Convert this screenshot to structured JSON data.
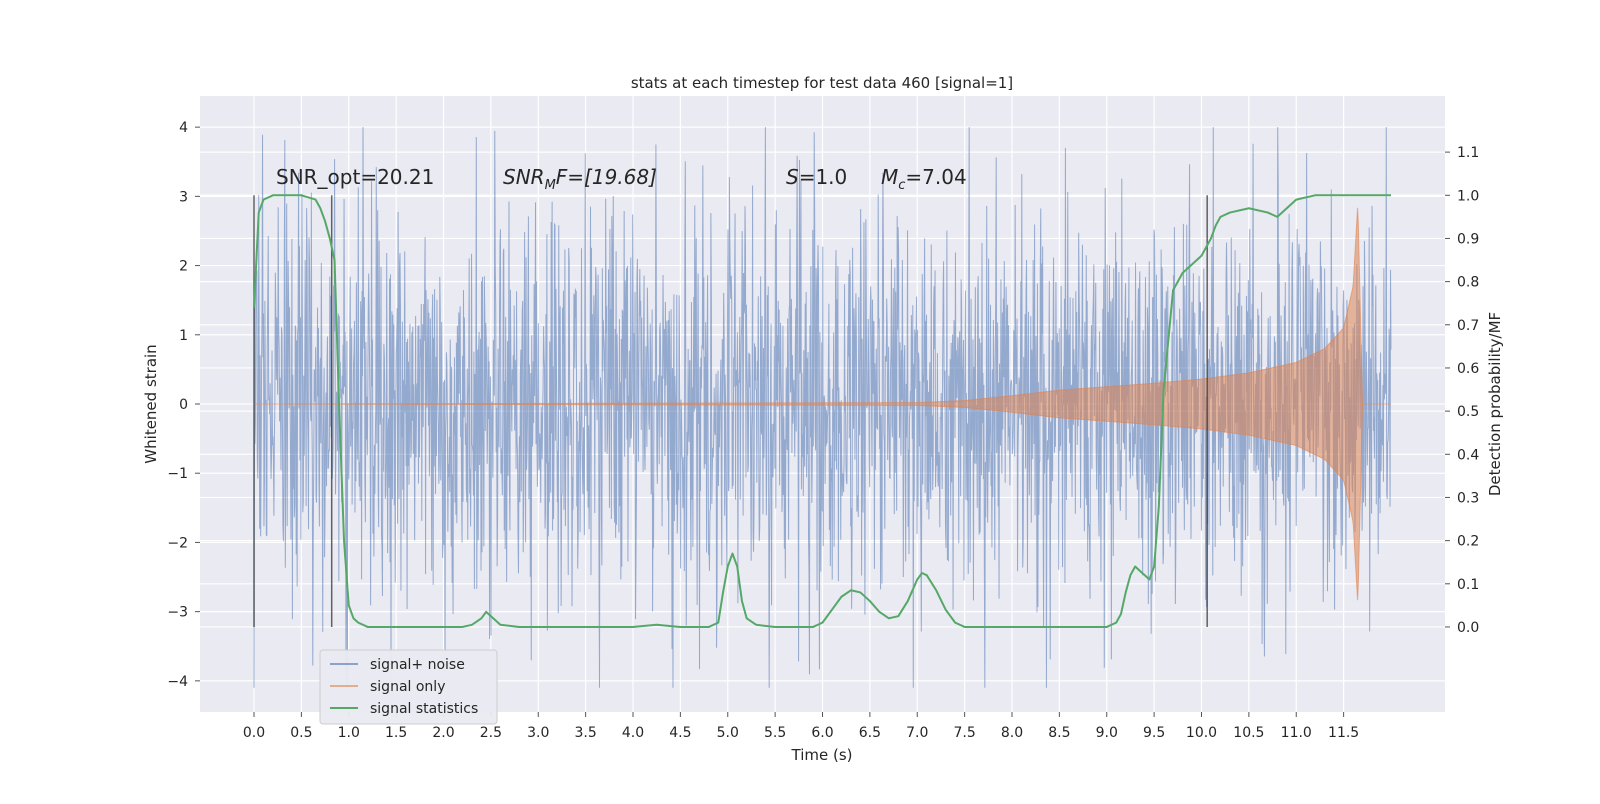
{
  "chart_data": {
    "type": "line",
    "title": "stats at each timestep for test data 460 [signal=1]",
    "xlabel": "Time (s)",
    "ylabel_left": "Whitened strain",
    "ylabel_right": "Detection probability/MF",
    "xlim": [
      -0.57,
      12.57
    ],
    "ylim_left": [
      -4.45,
      4.45
    ],
    "ylim_right": [
      -0.197,
      1.23
    ],
    "x_ticks": [
      0.0,
      0.5,
      1.0,
      1.5,
      2.0,
      2.5,
      3.0,
      3.5,
      4.0,
      4.5,
      5.0,
      5.5,
      6.0,
      6.5,
      7.0,
      7.5,
      8.0,
      8.5,
      9.0,
      9.5,
      10.0,
      10.5,
      11.0,
      11.5
    ],
    "x_tick_labels": [
      "0.0",
      "0.5",
      "1.0",
      "1.5",
      "2.0",
      "2.5",
      "3.0",
      "3.5",
      "4.0",
      "4.5",
      "5.0",
      "5.5",
      "6.0",
      "6.5",
      "7.0",
      "7.5",
      "8.0",
      "8.5",
      "9.0",
      "9.5",
      "10.0",
      "10.5",
      "11.0",
      "11.5"
    ],
    "y_left_ticks": [
      -4,
      -3,
      -2,
      -1,
      0,
      1,
      2,
      3,
      4
    ],
    "y_left_tick_labels": [
      "−4",
      "−3",
      "−2",
      "−1",
      "0",
      "1",
      "2",
      "3",
      "4"
    ],
    "y_right_ticks": [
      0.0,
      0.1,
      0.2,
      0.3,
      0.4,
      0.5,
      0.6,
      0.7,
      0.8,
      0.9,
      1.0,
      1.1
    ],
    "y_right_tick_labels": [
      "0.0",
      "0.1",
      "0.2",
      "0.3",
      "0.4",
      "0.5",
      "0.6",
      "0.7",
      "0.8",
      "0.9",
      "1.0",
      "1.1"
    ],
    "grid": true,
    "legend": {
      "placement": "lower-left",
      "entries": [
        {
          "label": "signal+ noise",
          "color": "#4C72B0"
        },
        {
          "label": "signal only",
          "color": "#DD8452"
        },
        {
          "label": "signal statistics",
          "color": "#55A868"
        }
      ]
    },
    "annotations": {
      "snr_opt": "SNR_opt=20.21",
      "snr_mf_label": "SNR",
      "snr_mf_sub": "M",
      "snr_mf_value": "F=[19.68]",
      "s_label": "S",
      "s_value": "=1.0",
      "mc_label": "M",
      "mc_sub": "c",
      "mc_value": "=7.04"
    },
    "series": [
      {
        "name": "signal+ noise",
        "axis": "left",
        "color": "#4C72B0",
        "x_range": [
          0.0,
          12.0
        ],
        "sample_count": 2400,
        "typical_amplitude": 1.4,
        "min_value": -4.1,
        "max_value": 4.0
      },
      {
        "name": "signal only",
        "axis": "left",
        "color": "#DD8452",
        "x_range": [
          0.0,
          12.0
        ],
        "envelope_x": [
          0.0,
          7.0,
          7.5,
          8.0,
          8.5,
          9.0,
          9.5,
          10.0,
          10.5,
          11.0,
          11.3,
          11.5,
          11.6,
          11.65,
          11.7,
          12.0
        ],
        "envelope_y": [
          0.0,
          0.02,
          0.05,
          0.12,
          0.2,
          0.25,
          0.3,
          0.36,
          0.45,
          0.6,
          0.8,
          1.1,
          1.7,
          2.9,
          0.0,
          0.0
        ]
      },
      {
        "name": "signal statistics",
        "axis": "right",
        "color": "#55A868",
        "x": [
          0.0,
          0.05,
          0.1,
          0.2,
          0.3,
          0.5,
          0.65,
          0.7,
          0.75,
          0.8,
          0.85,
          0.9,
          0.95,
          1.0,
          1.05,
          1.1,
          1.2,
          1.3,
          1.5,
          2.0,
          2.2,
          2.3,
          2.4,
          2.45,
          2.5,
          2.6,
          2.8,
          3.5,
          4.0,
          4.25,
          4.5,
          4.8,
          4.9,
          4.95,
          5.0,
          5.05,
          5.1,
          5.15,
          5.2,
          5.3,
          5.5,
          5.9,
          6.0,
          6.1,
          6.2,
          6.3,
          6.4,
          6.5,
          6.6,
          6.7,
          6.8,
          6.9,
          7.0,
          7.05,
          7.1,
          7.2,
          7.3,
          7.4,
          7.5,
          7.7,
          8.0,
          8.5,
          8.9,
          9.0,
          9.1,
          9.15,
          9.2,
          9.25,
          9.3,
          9.35,
          9.4,
          9.45,
          9.5,
          9.55,
          9.6,
          9.7,
          9.8,
          9.9,
          10.0,
          10.1,
          10.15,
          10.2,
          10.3,
          10.5,
          10.7,
          10.8,
          10.9,
          11.0,
          11.2,
          11.5,
          12.0
        ],
        "y": [
          0.74,
          0.96,
          0.99,
          1.0,
          1.0,
          1.0,
          0.99,
          0.97,
          0.94,
          0.9,
          0.85,
          0.5,
          0.2,
          0.05,
          0.02,
          0.01,
          0.0,
          0.0,
          0.0,
          0.0,
          0.0,
          0.005,
          0.02,
          0.035,
          0.025,
          0.005,
          0.0,
          0.0,
          0.0,
          0.005,
          0.0,
          0.0,
          0.01,
          0.08,
          0.14,
          0.17,
          0.14,
          0.06,
          0.02,
          0.005,
          0.0,
          0.0,
          0.01,
          0.04,
          0.07,
          0.085,
          0.08,
          0.06,
          0.035,
          0.02,
          0.025,
          0.06,
          0.11,
          0.125,
          0.12,
          0.085,
          0.04,
          0.01,
          0.0,
          0.0,
          0.0,
          0.0,
          0.0,
          0.0,
          0.01,
          0.03,
          0.08,
          0.12,
          0.14,
          0.13,
          0.12,
          0.11,
          0.14,
          0.28,
          0.55,
          0.78,
          0.82,
          0.84,
          0.86,
          0.9,
          0.93,
          0.95,
          0.96,
          0.97,
          0.96,
          0.95,
          0.97,
          0.99,
          1.0,
          1.0,
          1.0
        ]
      }
    ],
    "vertical_markers_x": [
      0.0,
      0.82,
      10.06
    ]
  }
}
